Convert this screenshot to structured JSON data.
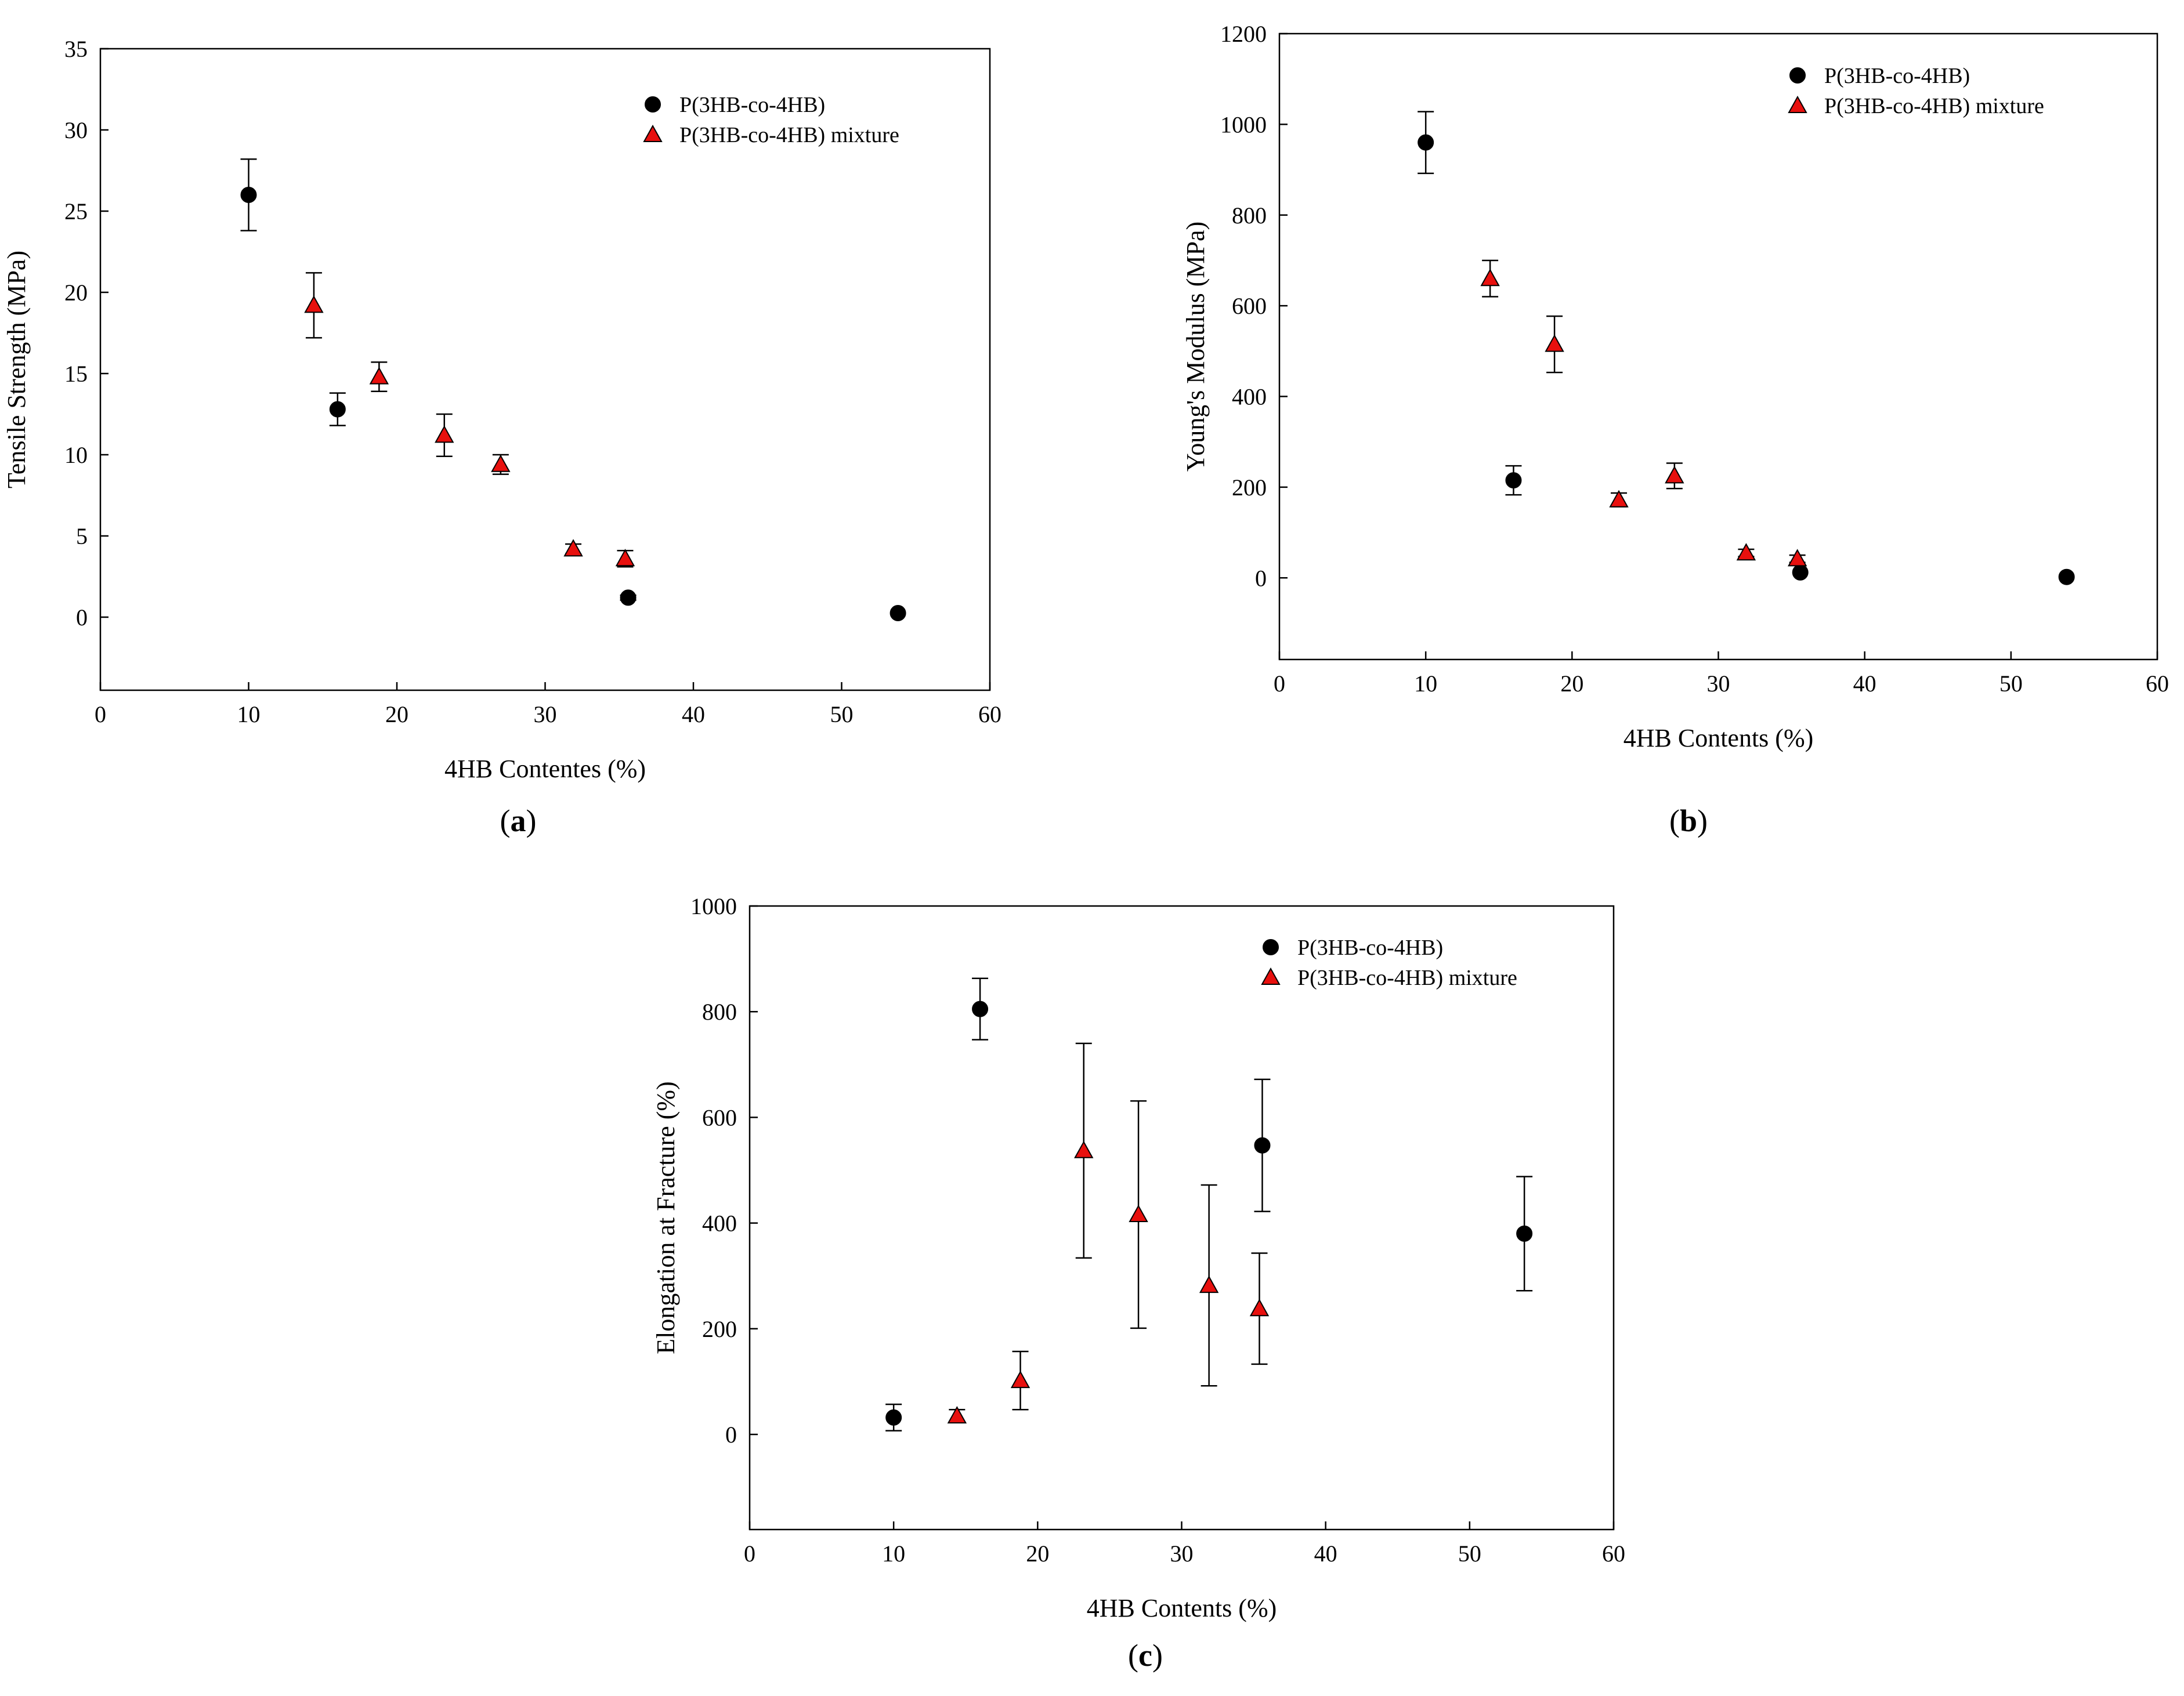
{
  "chart_data": [
    {
      "id": "a",
      "type": "scatter",
      "panel_label": "a",
      "xlabel": "4HB Contentes (%)",
      "ylabel": "Tensile Strength (MPa)",
      "xlim": [
        0,
        60
      ],
      "ylim": [
        -4.5,
        35
      ],
      "xticks": [
        0,
        10,
        20,
        30,
        40,
        50,
        60
      ],
      "yticks": [
        0,
        5,
        10,
        15,
        20,
        25,
        30,
        35
      ],
      "grid": false,
      "legend_position": "top-right",
      "series": [
        {
          "name": "P(3HB-co-4HB)",
          "marker": "circle",
          "color": "#000000",
          "points": [
            {
              "x": 10,
              "y": 26.0,
              "err": 2.2
            },
            {
              "x": 16,
              "y": 12.8,
              "err": 1.0
            },
            {
              "x": 35.6,
              "y": 1.2,
              "err": 0.15
            },
            {
              "x": 53.8,
              "y": 0.25,
              "err": 0.1
            }
          ]
        },
        {
          "name": "P(3HB-co-4HB) mixture",
          "marker": "triangle",
          "color": "#e8100e",
          "points": [
            {
              "x": 14.4,
              "y": 19.2,
              "err": 2.0
            },
            {
              "x": 18.8,
              "y": 14.8,
              "err": 0.9
            },
            {
              "x": 23.2,
              "y": 11.2,
              "err": 1.3
            },
            {
              "x": 27.0,
              "y": 9.4,
              "err": 0.6
            },
            {
              "x": 31.9,
              "y": 4.2,
              "err": 0.3
            },
            {
              "x": 35.4,
              "y": 3.6,
              "err": 0.5
            }
          ]
        }
      ]
    },
    {
      "id": "b",
      "type": "scatter",
      "panel_label": "b",
      "xlabel": "4HB Contents (%)",
      "ylabel": "Young's Modulus (MPa)",
      "xlim": [
        0,
        60
      ],
      "ylim": [
        -180,
        1200
      ],
      "xticks": [
        0,
        10,
        20,
        30,
        40,
        50,
        60
      ],
      "yticks": [
        0,
        200,
        400,
        600,
        800,
        1000,
        1200
      ],
      "grid": false,
      "legend_position": "top-right",
      "series": [
        {
          "name": "P(3HB-co-4HB)",
          "marker": "circle",
          "color": "#000000",
          "points": [
            {
              "x": 10,
              "y": 960,
              "err": 68
            },
            {
              "x": 16,
              "y": 215,
              "err": 32
            },
            {
              "x": 35.6,
              "y": 12,
              "err": 5
            },
            {
              "x": 53.8,
              "y": 2,
              "err": 2
            }
          ]
        },
        {
          "name": "P(3HB-co-4HB) mixture",
          "marker": "triangle",
          "color": "#e8100e",
          "points": [
            {
              "x": 14.4,
              "y": 660,
              "err": 40
            },
            {
              "x": 18.8,
              "y": 515,
              "err": 62
            },
            {
              "x": 23.2,
              "y": 172,
              "err": 15
            },
            {
              "x": 27.0,
              "y": 225,
              "err": 28
            },
            {
              "x": 31.9,
              "y": 55,
              "err": 8
            },
            {
              "x": 35.4,
              "y": 42,
              "err": 8
            }
          ]
        }
      ]
    },
    {
      "id": "c",
      "type": "scatter",
      "panel_label": "c",
      "xlabel": "4HB Contents (%)",
      "ylabel": "Elongation at Fracture (%)",
      "xlim": [
        0,
        60
      ],
      "ylim": [
        -180,
        1000
      ],
      "xticks": [
        0,
        10,
        20,
        30,
        40,
        50,
        60
      ],
      "yticks": [
        0,
        200,
        400,
        600,
        800,
        1000
      ],
      "grid": false,
      "legend_position": "top-right",
      "series": [
        {
          "name": "P(3HB-co-4HB)",
          "marker": "circle",
          "color": "#000000",
          "points": [
            {
              "x": 10,
              "y": 32,
              "err": 25
            },
            {
              "x": 16,
              "y": 805,
              "err": 58
            },
            {
              "x": 35.6,
              "y": 547,
              "err": 125
            },
            {
              "x": 53.8,
              "y": 380,
              "err": 108
            }
          ]
        },
        {
          "name": "P(3HB-co-4HB) mixture",
          "marker": "triangle",
          "color": "#e8100e",
          "points": [
            {
              "x": 14.4,
              "y": 35,
              "err": 12
            },
            {
              "x": 18.8,
              "y": 102,
              "err": 55
            },
            {
              "x": 23.2,
              "y": 537,
              "err": 203
            },
            {
              "x": 27.0,
              "y": 416,
              "err": 215
            },
            {
              "x": 31.9,
              "y": 282,
              "err": 190
            },
            {
              "x": 35.4,
              "y": 238,
              "err": 105
            }
          ]
        }
      ]
    }
  ]
}
